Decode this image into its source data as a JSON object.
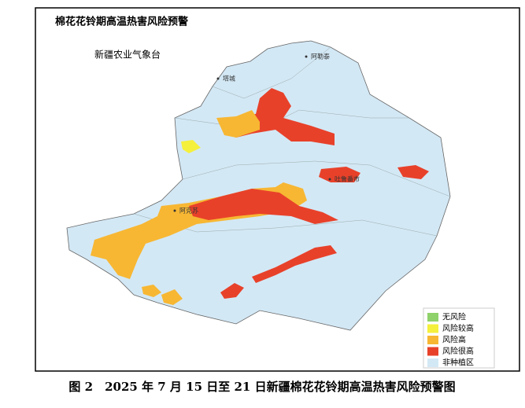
{
  "map": {
    "title": "棉花花铃期高温热害风险预警",
    "subtitle": "新疆农业气象台",
    "places": [
      "阿勒泰",
      "塔城",
      "阿克苏",
      "吐鲁番市"
    ]
  },
  "legend": {
    "items": [
      {
        "label": "无风险",
        "color": "#8fd16a"
      },
      {
        "label": "风险较高",
        "color": "#f5f03c"
      },
      {
        "label": "风险高",
        "color": "#f7b733"
      },
      {
        "label": "风险很高",
        "color": "#e8412a"
      },
      {
        "label": "非种植区",
        "color": "#d3e8f5"
      }
    ]
  },
  "caption": "图 2　2025 年 7 月 15 日至 21 日新疆棉花花铃期高温热害风险预警图"
}
